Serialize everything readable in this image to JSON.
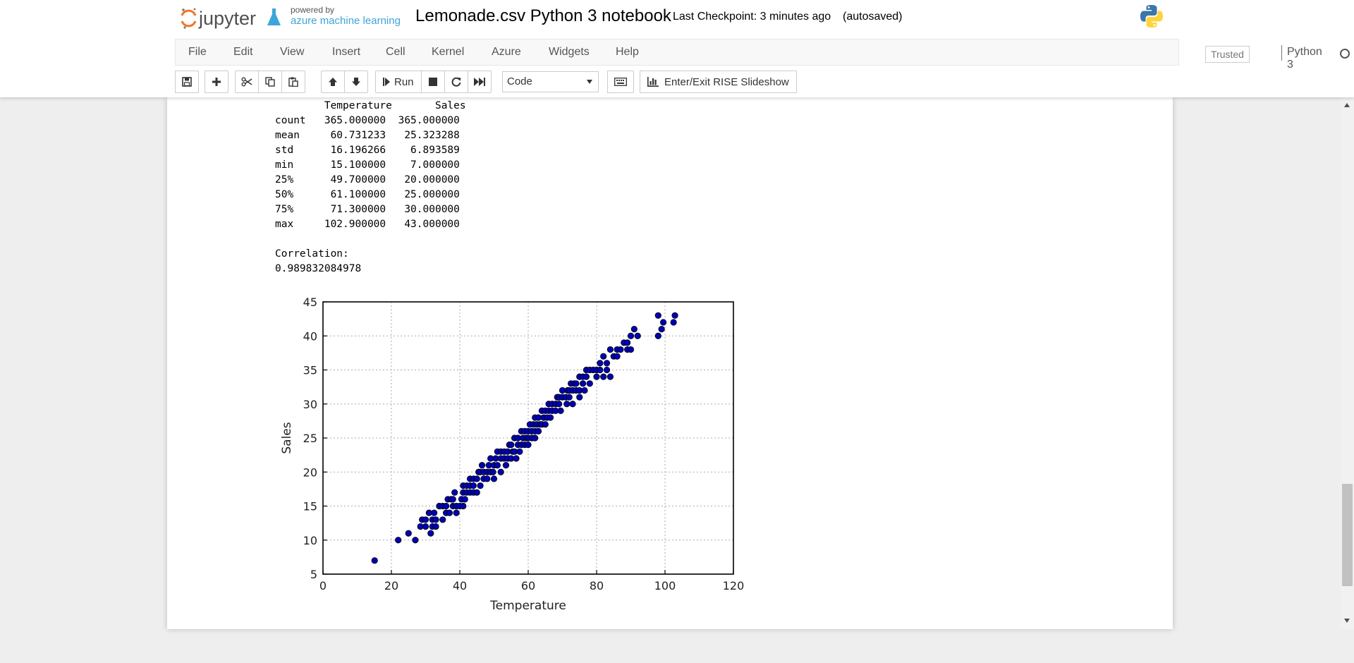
{
  "header": {
    "logo_text": "jupyter",
    "powered_by": "powered by",
    "azure_text": "azure machine learning",
    "notebook_title": "Lemonade.csv Python 3 notebook",
    "checkpoint": "Last Checkpoint: 3 minutes ago",
    "autosaved": "(autosaved)",
    "python_logo_icon": "python-logo-icon"
  },
  "menu": {
    "items": [
      "File",
      "Edit",
      "View",
      "Insert",
      "Cell",
      "Kernel",
      "Azure",
      "Widgets",
      "Help"
    ],
    "trusted": "Trusted",
    "kernel_name": "Python 3"
  },
  "toolbar": {
    "run_label": "Run",
    "cell_type": "Code",
    "rise_label": "Enter/Exit RISE Slideshow",
    "icons": [
      "save-icon",
      "plus-icon",
      "cut-icon",
      "copy-icon",
      "paste-icon",
      "arrow-up-icon",
      "arrow-down-icon",
      "step-forward-icon",
      "stop-icon",
      "restart-icon",
      "fast-forward-icon",
      "keyboard-icon",
      "bar-chart-icon"
    ]
  },
  "output": {
    "describe_header": "        Temperature       Sales",
    "describe_rows": [
      "count   365.000000  365.000000",
      "mean     60.731233   25.323288",
      "std      16.196266    6.893589",
      "min      15.100000    7.000000",
      "25%      49.700000   20.000000",
      "50%      61.100000   25.000000",
      "75%      71.300000   30.000000",
      "max     102.900000   43.000000"
    ],
    "correlation_label": "Correlation:",
    "correlation_value": "0.989832084978"
  },
  "colors": {
    "point_fill": "#0000b3",
    "point_stroke": "#000000",
    "axis": "#000000",
    "grid": "#aaaaaa"
  },
  "chart_data": {
    "type": "scatter",
    "title": "",
    "xlabel": "Temperature",
    "ylabel": "Sales",
    "xlim": [
      0,
      120
    ],
    "ylim": [
      5,
      45
    ],
    "xticks": [
      0,
      20,
      40,
      60,
      80,
      100,
      120
    ],
    "yticks": [
      5,
      10,
      15,
      20,
      25,
      30,
      35,
      40,
      45
    ],
    "grid": true,
    "points": [
      [
        15.1,
        7
      ],
      [
        22,
        10
      ],
      [
        25,
        11
      ],
      [
        27,
        10
      ],
      [
        28.5,
        12
      ],
      [
        29,
        13
      ],
      [
        30,
        12
      ],
      [
        30,
        13
      ],
      [
        31,
        14
      ],
      [
        31.5,
        11
      ],
      [
        32,
        12
      ],
      [
        32,
        13
      ],
      [
        32.5,
        14
      ],
      [
        33,
        12
      ],
      [
        33,
        13
      ],
      [
        34,
        15
      ],
      [
        35,
        15
      ],
      [
        35,
        13
      ],
      [
        36,
        14
      ],
      [
        36,
        15
      ],
      [
        36.5,
        16
      ],
      [
        37,
        14
      ],
      [
        37.5,
        16
      ],
      [
        38,
        15
      ],
      [
        38,
        16
      ],
      [
        38.5,
        17
      ],
      [
        39,
        14
      ],
      [
        39,
        15
      ],
      [
        40,
        15
      ],
      [
        40.5,
        16
      ],
      [
        41,
        17
      ],
      [
        41,
        18
      ],
      [
        41,
        15
      ],
      [
        41.5,
        16
      ],
      [
        42,
        17
      ],
      [
        42,
        18
      ],
      [
        43,
        17
      ],
      [
        43,
        18
      ],
      [
        43,
        19
      ],
      [
        44,
        17
      ],
      [
        44,
        18
      ],
      [
        44,
        19
      ],
      [
        45,
        17
      ],
      [
        45,
        19
      ],
      [
        45.5,
        20
      ],
      [
        46,
        18
      ],
      [
        46,
        20
      ],
      [
        46.5,
        21
      ],
      [
        47,
        19
      ],
      [
        47,
        20
      ],
      [
        48,
        19
      ],
      [
        48,
        20
      ],
      [
        48.5,
        21
      ],
      [
        49,
        20
      ],
      [
        49,
        22
      ],
      [
        49.7,
        20
      ],
      [
        50,
        21
      ],
      [
        50,
        19
      ],
      [
        50.5,
        22
      ],
      [
        51,
        21
      ],
      [
        51,
        23
      ],
      [
        52,
        22
      ],
      [
        52,
        20
      ],
      [
        52,
        23
      ],
      [
        53,
        22
      ],
      [
        53,
        23
      ],
      [
        53.5,
        21
      ],
      [
        54,
        22
      ],
      [
        54,
        23
      ],
      [
        54.5,
        24
      ],
      [
        55,
        22
      ],
      [
        55,
        24
      ],
      [
        55.5,
        23
      ],
      [
        56,
        23
      ],
      [
        56,
        25
      ],
      [
        56.5,
        22
      ],
      [
        57,
        24
      ],
      [
        57,
        25
      ],
      [
        57.5,
        23
      ],
      [
        58,
        24
      ],
      [
        58,
        26
      ],
      [
        58.5,
        25
      ],
      [
        59,
        24
      ],
      [
        59,
        26
      ],
      [
        59.5,
        25
      ],
      [
        60,
        25
      ],
      [
        60,
        26
      ],
      [
        60,
        24
      ],
      [
        60.5,
        27
      ],
      [
        61,
        26
      ],
      [
        61.1,
        25
      ],
      [
        61.5,
        27
      ],
      [
        62,
        25
      ],
      [
        62,
        26
      ],
      [
        62,
        28
      ],
      [
        62.5,
        27
      ],
      [
        63,
        26
      ],
      [
        63,
        28
      ],
      [
        63.5,
        27
      ],
      [
        64,
        27
      ],
      [
        64,
        29
      ],
      [
        64.5,
        28
      ],
      [
        65,
        27
      ],
      [
        65,
        29
      ],
      [
        65.5,
        28
      ],
      [
        66,
        29
      ],
      [
        66,
        30
      ],
      [
        66.5,
        28
      ],
      [
        67,
        29
      ],
      [
        67,
        30
      ],
      [
        68,
        30
      ],
      [
        68,
        29
      ],
      [
        68.5,
        31
      ],
      [
        69,
        30
      ],
      [
        69,
        31
      ],
      [
        69.5,
        29
      ],
      [
        70,
        31
      ],
      [
        70,
        32
      ],
      [
        71,
        31
      ],
      [
        71.3,
        30
      ],
      [
        71.5,
        32
      ],
      [
        72,
        32
      ],
      [
        72,
        31
      ],
      [
        72.5,
        33
      ],
      [
        73,
        30
      ],
      [
        73,
        32
      ],
      [
        73.5,
        33
      ],
      [
        74,
        32
      ],
      [
        74,
        33
      ],
      [
        75,
        32
      ],
      [
        75,
        31
      ],
      [
        75,
        34
      ],
      [
        76,
        33
      ],
      [
        76,
        34
      ],
      [
        76.5,
        32
      ],
      [
        77,
        34
      ],
      [
        77,
        35
      ],
      [
        78,
        33
      ],
      [
        78,
        35
      ],
      [
        79,
        35
      ],
      [
        80,
        35
      ],
      [
        80,
        34
      ],
      [
        81,
        35
      ],
      [
        81,
        36
      ],
      [
        82,
        34
      ],
      [
        82,
        37
      ],
      [
        83,
        35
      ],
      [
        83,
        36
      ],
      [
        84,
        34
      ],
      [
        84,
        38
      ],
      [
        85,
        37
      ],
      [
        86,
        37
      ],
      [
        86,
        38
      ],
      [
        87,
        38
      ],
      [
        88,
        39
      ],
      [
        89,
        38
      ],
      [
        89,
        39
      ],
      [
        90,
        40
      ],
      [
        90,
        38
      ],
      [
        91,
        41
      ],
      [
        92,
        40
      ],
      [
        98,
        43
      ],
      [
        98,
        40
      ],
      [
        99,
        41
      ],
      [
        99.5,
        42
      ],
      [
        102.9,
        43
      ],
      [
        102.5,
        42
      ]
    ]
  }
}
